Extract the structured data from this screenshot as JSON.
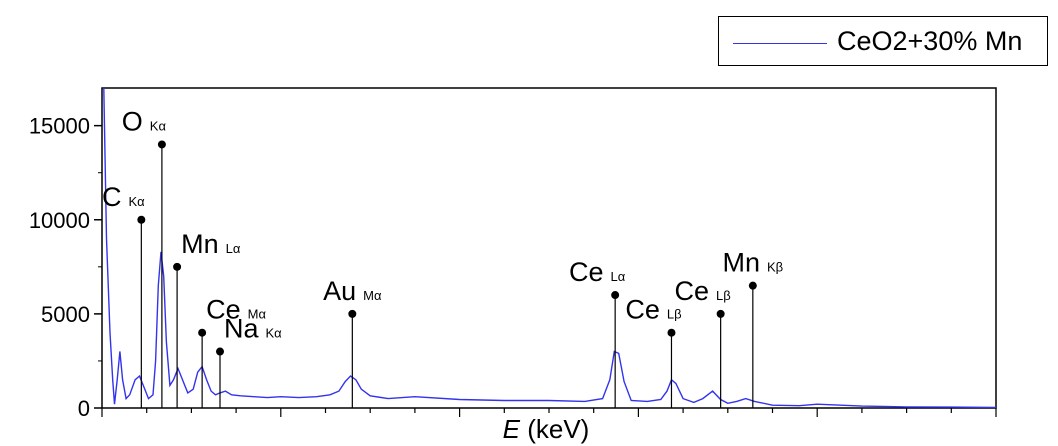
{
  "legend": {
    "label": "CeO2+30% Mn",
    "color": "#3333ee"
  },
  "chart_data": {
    "type": "line",
    "title": "",
    "xlabel": {
      "italic": "E",
      "rest": " (keV)"
    },
    "ylabel": "",
    "ylim": [
      0,
      17000
    ],
    "xlim": [
      0,
      10
    ],
    "y_ticks": [
      0,
      5000,
      10000,
      15000
    ],
    "y_tick_labels": [
      "0",
      "5000",
      "10000",
      "15000"
    ],
    "x_tick_labels_shown": false,
    "grid": false,
    "legend_position": "top-right",
    "series": [
      {
        "name": "CeO2+30% Mn",
        "color": "#3333ee",
        "points": [
          [
            0.02,
            17000
          ],
          [
            0.05,
            9000
          ],
          [
            0.09,
            4000
          ],
          [
            0.12,
            1500
          ],
          [
            0.14,
            200
          ],
          [
            0.17,
            1500
          ],
          [
            0.2,
            3000
          ],
          [
            0.23,
            1500
          ],
          [
            0.27,
            500
          ],
          [
            0.31,
            700
          ],
          [
            0.37,
            1500
          ],
          [
            0.42,
            1700
          ],
          [
            0.47,
            1100
          ],
          [
            0.52,
            500
          ],
          [
            0.57,
            700
          ],
          [
            0.6,
            2500
          ],
          [
            0.63,
            6500
          ],
          [
            0.66,
            8300
          ],
          [
            0.69,
            7000
          ],
          [
            0.72,
            3500
          ],
          [
            0.76,
            1200
          ],
          [
            0.8,
            1500
          ],
          [
            0.85,
            2100
          ],
          [
            0.9,
            1500
          ],
          [
            0.96,
            800
          ],
          [
            1.02,
            1000
          ],
          [
            1.07,
            1900
          ],
          [
            1.12,
            2200
          ],
          [
            1.17,
            1500
          ],
          [
            1.22,
            900
          ],
          [
            1.27,
            700
          ],
          [
            1.32,
            800
          ],
          [
            1.38,
            900
          ],
          [
            1.45,
            700
          ],
          [
            1.55,
            650
          ],
          [
            1.7,
            600
          ],
          [
            1.85,
            550
          ],
          [
            2.0,
            600
          ],
          [
            2.2,
            550
          ],
          [
            2.4,
            600
          ],
          [
            2.55,
            700
          ],
          [
            2.65,
            900
          ],
          [
            2.72,
            1400
          ],
          [
            2.78,
            1700
          ],
          [
            2.84,
            1500
          ],
          [
            2.9,
            1000
          ],
          [
            3.0,
            650
          ],
          [
            3.2,
            500
          ],
          [
            3.5,
            600
          ],
          [
            4.0,
            450
          ],
          [
            4.5,
            400
          ],
          [
            5.0,
            400
          ],
          [
            5.4,
            350
          ],
          [
            5.6,
            500
          ],
          [
            5.68,
            1500
          ],
          [
            5.73,
            3000
          ],
          [
            5.78,
            2900
          ],
          [
            5.84,
            1400
          ],
          [
            5.92,
            400
          ],
          [
            6.1,
            350
          ],
          [
            6.25,
            450
          ],
          [
            6.32,
            900
          ],
          [
            6.37,
            1500
          ],
          [
            6.42,
            1300
          ],
          [
            6.5,
            500
          ],
          [
            6.62,
            300
          ],
          [
            6.72,
            500
          ],
          [
            6.83,
            900
          ],
          [
            6.92,
            450
          ],
          [
            7.0,
            250
          ],
          [
            7.1,
            350
          ],
          [
            7.2,
            500
          ],
          [
            7.3,
            350
          ],
          [
            7.5,
            150
          ],
          [
            7.8,
            120
          ],
          [
            8.0,
            200
          ],
          [
            8.5,
            100
          ],
          [
            9.0,
            60
          ],
          [
            9.5,
            50
          ],
          [
            10.0,
            30
          ]
        ]
      }
    ],
    "annotations": [
      {
        "symbol": "C",
        "line": "Kα",
        "x": 0.44,
        "y": 10000,
        "label_pos": "top-left"
      },
      {
        "symbol": "O",
        "line": "Kα",
        "x": 0.67,
        "y": 14000,
        "label_pos": "top-left"
      },
      {
        "symbol": "Mn",
        "line": "Lα",
        "x": 0.84,
        "y": 7500,
        "label_pos": "top-right"
      },
      {
        "symbol": "Ce",
        "line": "Mα",
        "x": 1.12,
        "y": 4000,
        "label_pos": "top-right"
      },
      {
        "symbol": "Na",
        "line": "Kα",
        "x": 1.32,
        "y": 3000,
        "label_pos": "top-right"
      },
      {
        "symbol": "Au",
        "line": "Mα",
        "x": 2.8,
        "y": 5000,
        "label_pos": "top"
      },
      {
        "symbol": "Ce",
        "line": "Lα",
        "x": 5.74,
        "y": 6000,
        "label_pos": "top-left"
      },
      {
        "symbol": "Ce",
        "line": "Lβ",
        "x": 6.37,
        "y": 4000,
        "label_pos": "top-left"
      },
      {
        "symbol": "Ce",
        "line": "Lβ",
        "x": 6.92,
        "y": 5000,
        "label_pos": "top-left"
      },
      {
        "symbol": "Mn",
        "line": "Kβ",
        "x": 7.28,
        "y": 6500,
        "label_pos": "top"
      }
    ]
  }
}
